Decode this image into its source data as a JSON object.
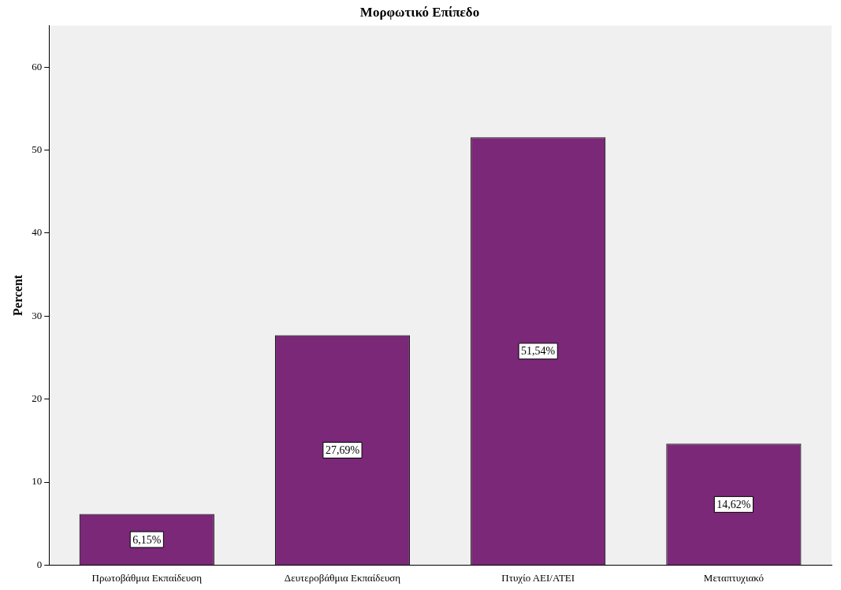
{
  "chart_data": {
    "type": "bar",
    "title": "Μορφωτικό Επίπεδο",
    "ylabel": "Percent",
    "categories": [
      "Πρωτοβάθμια Εκπαίδευση",
      "Δευτεροβάθμια Εκπαίδευση",
      "Πτυχίο ΑΕΙ/ΑΤΕΙ",
      "Μεταπτυχιακό"
    ],
    "values": [
      6.15,
      27.69,
      51.54,
      14.62
    ],
    "value_labels": [
      "6,15%",
      "27,69%",
      "51,54%",
      "14,62%"
    ],
    "color": "#7b2879",
    "ylim": [
      0,
      65
    ],
    "yticks": [
      0,
      10,
      20,
      30,
      40,
      50,
      60
    ],
    "grid": false,
    "legend": false
  }
}
